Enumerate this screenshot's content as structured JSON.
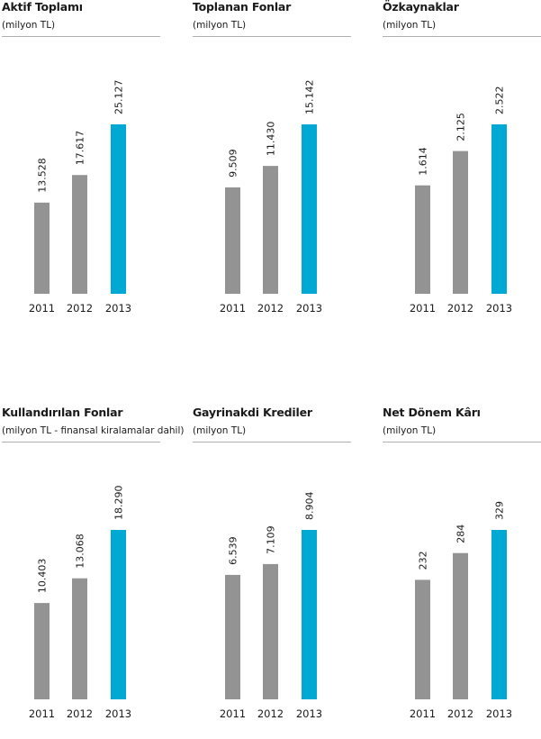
{
  "colors": {
    "past_bar": "#939393",
    "current_bar": "#00a9d4",
    "text": "#1a1a1a"
  },
  "chart_data": [
    {
      "type": "bar",
      "title": "Aktif Toplamı",
      "subtitle": "(milyon TL)",
      "categories": [
        "2011",
        "2012",
        "2013"
      ],
      "values": [
        13528,
        17617,
        25127
      ],
      "value_labels": [
        "13.528",
        "17.617",
        "25.127"
      ]
    },
    {
      "type": "bar",
      "title": "Toplanan Fonlar",
      "subtitle": "(milyon TL)",
      "categories": [
        "2011",
        "2012",
        "2013"
      ],
      "values": [
        9509,
        11430,
        15142
      ],
      "value_labels": [
        "9.509",
        "11.430",
        "15.142"
      ]
    },
    {
      "type": "bar",
      "title": "Özkaynaklar",
      "subtitle": "(milyon TL)",
      "categories": [
        "2011",
        "2012",
        "2013"
      ],
      "values": [
        1614,
        2125,
        2522
      ],
      "value_labels": [
        "1.614",
        "2.125",
        "2.522"
      ]
    },
    {
      "type": "bar",
      "title": "Kullandırılan Fonlar",
      "subtitle": "(milyon TL - finansal kiralamalar dahil)",
      "categories": [
        "2011",
        "2012",
        "2013"
      ],
      "values": [
        10403,
        13068,
        18290
      ],
      "value_labels": [
        "10.403",
        "13.068",
        "18.290"
      ]
    },
    {
      "type": "bar",
      "title": "Gayrinakdi Krediler",
      "subtitle": "(milyon TL)",
      "categories": [
        "2011",
        "2012",
        "2013"
      ],
      "values": [
        6539,
        7109,
        8904
      ],
      "value_labels": [
        "6.539",
        "7.109",
        "8.904"
      ]
    },
    {
      "type": "bar",
      "title": "Net Dönem Kârı",
      "subtitle": "(milyon TL)",
      "categories": [
        "2011",
        "2012",
        "2013"
      ],
      "values": [
        232,
        284,
        329
      ],
      "value_labels": [
        "232",
        "284",
        "329"
      ]
    }
  ]
}
